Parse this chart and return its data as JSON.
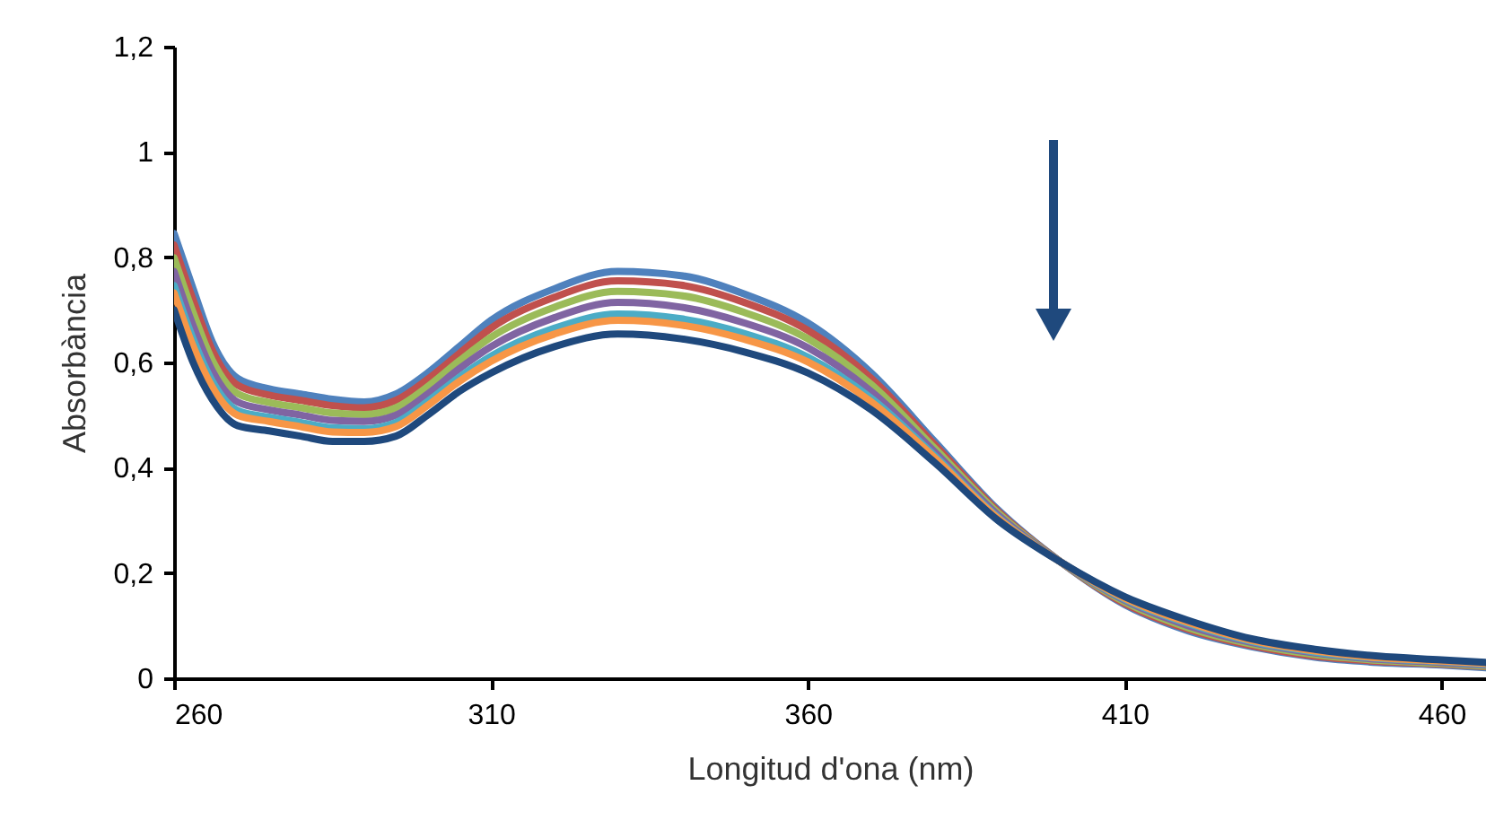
{
  "chart_data": {
    "type": "line",
    "xlabel": "Longitud d'ona (nm)",
    "ylabel": "Absorbància",
    "x": [
      260,
      263,
      266,
      270,
      275,
      280,
      285,
      290,
      295,
      300,
      305,
      310,
      320,
      330,
      340,
      350,
      360,
      370,
      380,
      390,
      400,
      410,
      420,
      430,
      440,
      450,
      460,
      467
    ],
    "xlim": [
      260,
      467
    ],
    "xticks": [
      260,
      310,
      360,
      410,
      460
    ],
    "ylim": [
      0,
      1.2
    ],
    "yticks": [
      0,
      {
        "value": 0.2,
        "label": "0,2"
      },
      {
        "value": 0.4,
        "label": "0,4"
      },
      {
        "value": 0.6,
        "label": "0,6"
      },
      {
        "value": 0.8,
        "label": "0,8"
      },
      1,
      {
        "value": 1.2,
        "label": "1,2"
      }
    ],
    "grid": false,
    "marker": "none",
    "line_style": "solid",
    "series": [
      {
        "color": "#4f81bd",
        "values": [
          0.845,
          0.74,
          0.64,
          0.57,
          0.55,
          0.54,
          0.53,
          0.525,
          0.54,
          0.58,
          0.63,
          0.68,
          0.74,
          0.773,
          0.765,
          0.73,
          0.675,
          0.58,
          0.45,
          0.32,
          0.22,
          0.14,
          0.09,
          0.06,
          0.04,
          0.03,
          0.025,
          0.02
        ]
      },
      {
        "color": "#c0504d",
        "values": [
          0.823,
          0.719,
          0.624,
          0.557,
          0.538,
          0.528,
          0.518,
          0.514,
          0.528,
          0.568,
          0.617,
          0.665,
          0.724,
          0.755,
          0.747,
          0.714,
          0.661,
          0.57,
          0.444,
          0.317,
          0.22,
          0.142,
          0.093,
          0.062,
          0.042,
          0.032,
          0.027,
          0.022
        ]
      },
      {
        "color": "#9bbb59",
        "values": [
          0.799,
          0.695,
          0.605,
          0.541,
          0.524,
          0.514,
          0.504,
          0.501,
          0.514,
          0.554,
          0.603,
          0.648,
          0.705,
          0.735,
          0.727,
          0.695,
          0.645,
          0.558,
          0.437,
          0.314,
          0.22,
          0.145,
          0.096,
          0.065,
          0.045,
          0.034,
          0.028,
          0.023
        ]
      },
      {
        "color": "#8064a2",
        "values": [
          0.773,
          0.67,
          0.585,
          0.525,
          0.51,
          0.5,
          0.49,
          0.488,
          0.5,
          0.54,
          0.588,
          0.63,
          0.685,
          0.714,
          0.705,
          0.675,
          0.628,
          0.545,
          0.43,
          0.31,
          0.22,
          0.148,
          0.1,
          0.068,
          0.048,
          0.036,
          0.03,
          0.025
        ]
      },
      {
        "color": "#4bacc6",
        "values": [
          0.746,
          0.645,
          0.565,
          0.509,
          0.496,
          0.486,
          0.476,
          0.474,
          0.486,
          0.526,
          0.572,
          0.612,
          0.665,
          0.692,
          0.683,
          0.655,
          0.61,
          0.532,
          0.423,
          0.306,
          0.22,
          0.15,
          0.104,
          0.07,
          0.05,
          0.038,
          0.032,
          0.027
        ]
      },
      {
        "color": "#f79646",
        "values": [
          0.732,
          0.631,
          0.554,
          0.5,
          0.488,
          0.478,
          0.468,
          0.467,
          0.478,
          0.518,
          0.564,
          0.602,
          0.654,
          0.68,
          0.671,
          0.644,
          0.601,
          0.525,
          0.419,
          0.304,
          0.22,
          0.152,
          0.106,
          0.072,
          0.052,
          0.039,
          0.033,
          0.028
        ]
      },
      {
        "color": "#1f497d",
        "values": [
          0.7,
          0.6,
          0.53,
          0.48,
          0.47,
          0.46,
          0.45,
          0.45,
          0.46,
          0.5,
          0.545,
          0.58,
          0.63,
          0.654,
          0.645,
          0.62,
          0.58,
          0.51,
          0.41,
          0.3,
          0.22,
          0.155,
          0.11,
          0.075,
          0.055,
          0.042,
          0.035,
          0.03
        ]
      }
    ]
  }
}
